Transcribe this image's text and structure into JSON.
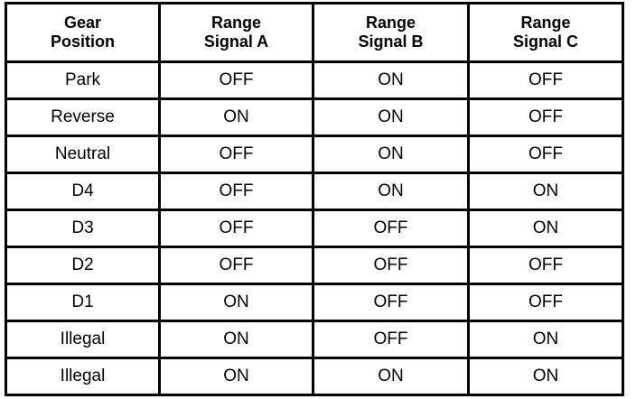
{
  "table": {
    "headers": [
      [
        "Gear",
        "Position"
      ],
      [
        "Range",
        "Signal A"
      ],
      [
        "Range",
        "Signal B"
      ],
      [
        "Range",
        "Signal C"
      ]
    ],
    "rows": [
      [
        "Park",
        "OFF",
        "ON",
        "OFF"
      ],
      [
        "Reverse",
        "ON",
        "ON",
        "OFF"
      ],
      [
        "Neutral",
        "OFF",
        "ON",
        "OFF"
      ],
      [
        "D4",
        "OFF",
        "ON",
        "ON"
      ],
      [
        "D3",
        "OFF",
        "OFF",
        "ON"
      ],
      [
        "D2",
        "OFF",
        "OFF",
        "OFF"
      ],
      [
        "D1",
        "ON",
        "OFF",
        "OFF"
      ],
      [
        "Illegal",
        "ON",
        "OFF",
        "ON"
      ],
      [
        "Illegal",
        "ON",
        "ON",
        "ON"
      ]
    ]
  }
}
